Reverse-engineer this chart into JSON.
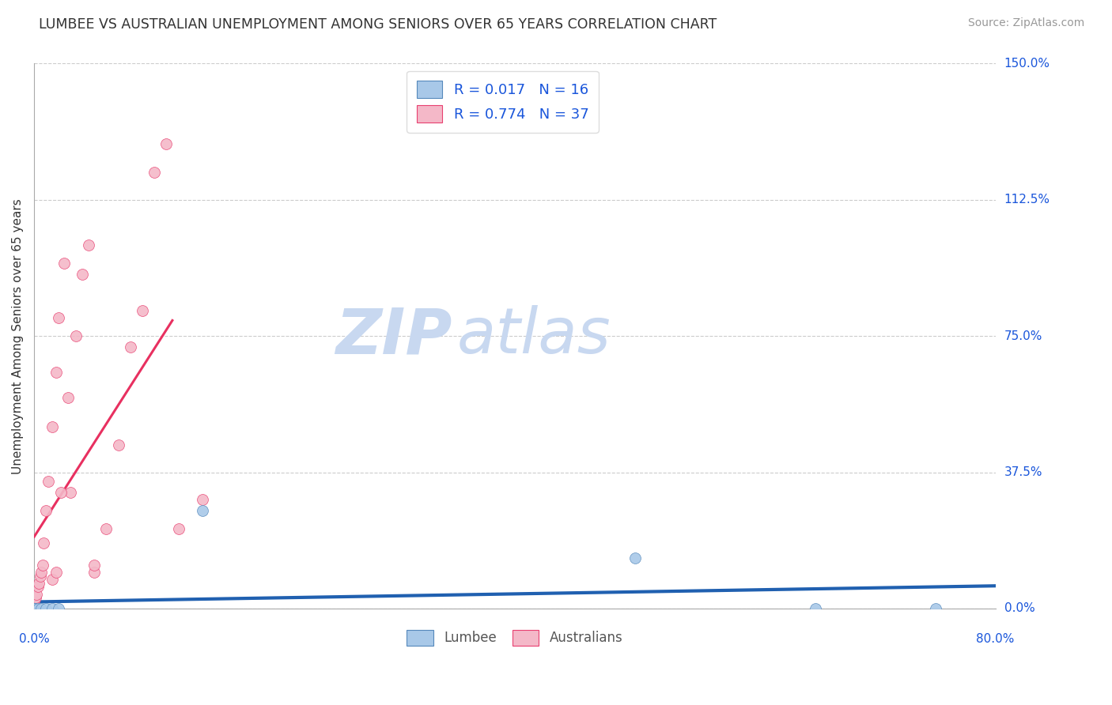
{
  "title": "LUMBEE VS AUSTRALIAN UNEMPLOYMENT AMONG SENIORS OVER 65 YEARS CORRELATION CHART",
  "source": "Source: ZipAtlas.com",
  "ylabel": "Unemployment Among Seniors over 65 years",
  "xlim": [
    0.0,
    0.8
  ],
  "ylim": [
    0.0,
    1.5
  ],
  "y_ticks": [
    0.0,
    0.375,
    0.75,
    1.125,
    1.5
  ],
  "y_tick_labels": [
    "0.0%",
    "37.5%",
    "75.0%",
    "112.5%",
    "150.0%"
  ],
  "x_tick_left": "0.0%",
  "x_tick_right": "80.0%",
  "watermark_zip": "ZIP",
  "watermark_atlas": "atlas",
  "lumbee_color": "#a8c8e8",
  "aus_color": "#f4b8c8",
  "lumbee_edge_color": "#5588bb",
  "aus_edge_color": "#e84070",
  "lumbee_line_color": "#2060b0",
  "aus_line_color": "#e83060",
  "title_color": "#333333",
  "source_color": "#999999",
  "grid_color": "#cccccc",
  "watermark_color": "#c8d8f0",
  "legend_text_color": "#1a56db",
  "bottom_label_color": "#555555",
  "lum_r": "0.017",
  "lum_n": "16",
  "aus_r": "0.774",
  "aus_n": "37",
  "bottom_label_lumbee": "Lumbee",
  "bottom_label_aus": "Australians",
  "lum_x": [
    0.0,
    0.0,
    0.0,
    0.0,
    0.0,
    0.0,
    0.0,
    0.003,
    0.006,
    0.01,
    0.015,
    0.02,
    0.14,
    0.5,
    0.65,
    0.75
  ],
  "lum_y": [
    0.0,
    0.0,
    0.0,
    0.0,
    0.0,
    0.0,
    0.0,
    0.0,
    0.0,
    0.0,
    0.0,
    0.0,
    0.27,
    0.14,
    0.0,
    0.0
  ],
  "aus_x": [
    0.0,
    0.0,
    0.0,
    0.0,
    0.0,
    0.001,
    0.002,
    0.003,
    0.004,
    0.005,
    0.006,
    0.007,
    0.008,
    0.01,
    0.012,
    0.015,
    0.018,
    0.02,
    0.025,
    0.03,
    0.04,
    0.045,
    0.05,
    0.06,
    0.07,
    0.08,
    0.09,
    0.1,
    0.11,
    0.12,
    0.14,
    0.015,
    0.018,
    0.022,
    0.028,
    0.035,
    0.05
  ],
  "aus_y": [
    0.0,
    0.0,
    0.0,
    0.0,
    0.02,
    0.03,
    0.04,
    0.06,
    0.07,
    0.09,
    0.1,
    0.12,
    0.18,
    0.27,
    0.35,
    0.5,
    0.65,
    0.8,
    0.95,
    0.32,
    0.92,
    1.0,
    0.1,
    0.22,
    0.45,
    0.72,
    0.82,
    1.2,
    1.28,
    0.22,
    0.3,
    0.08,
    0.1,
    0.32,
    0.58,
    0.75,
    0.12
  ]
}
